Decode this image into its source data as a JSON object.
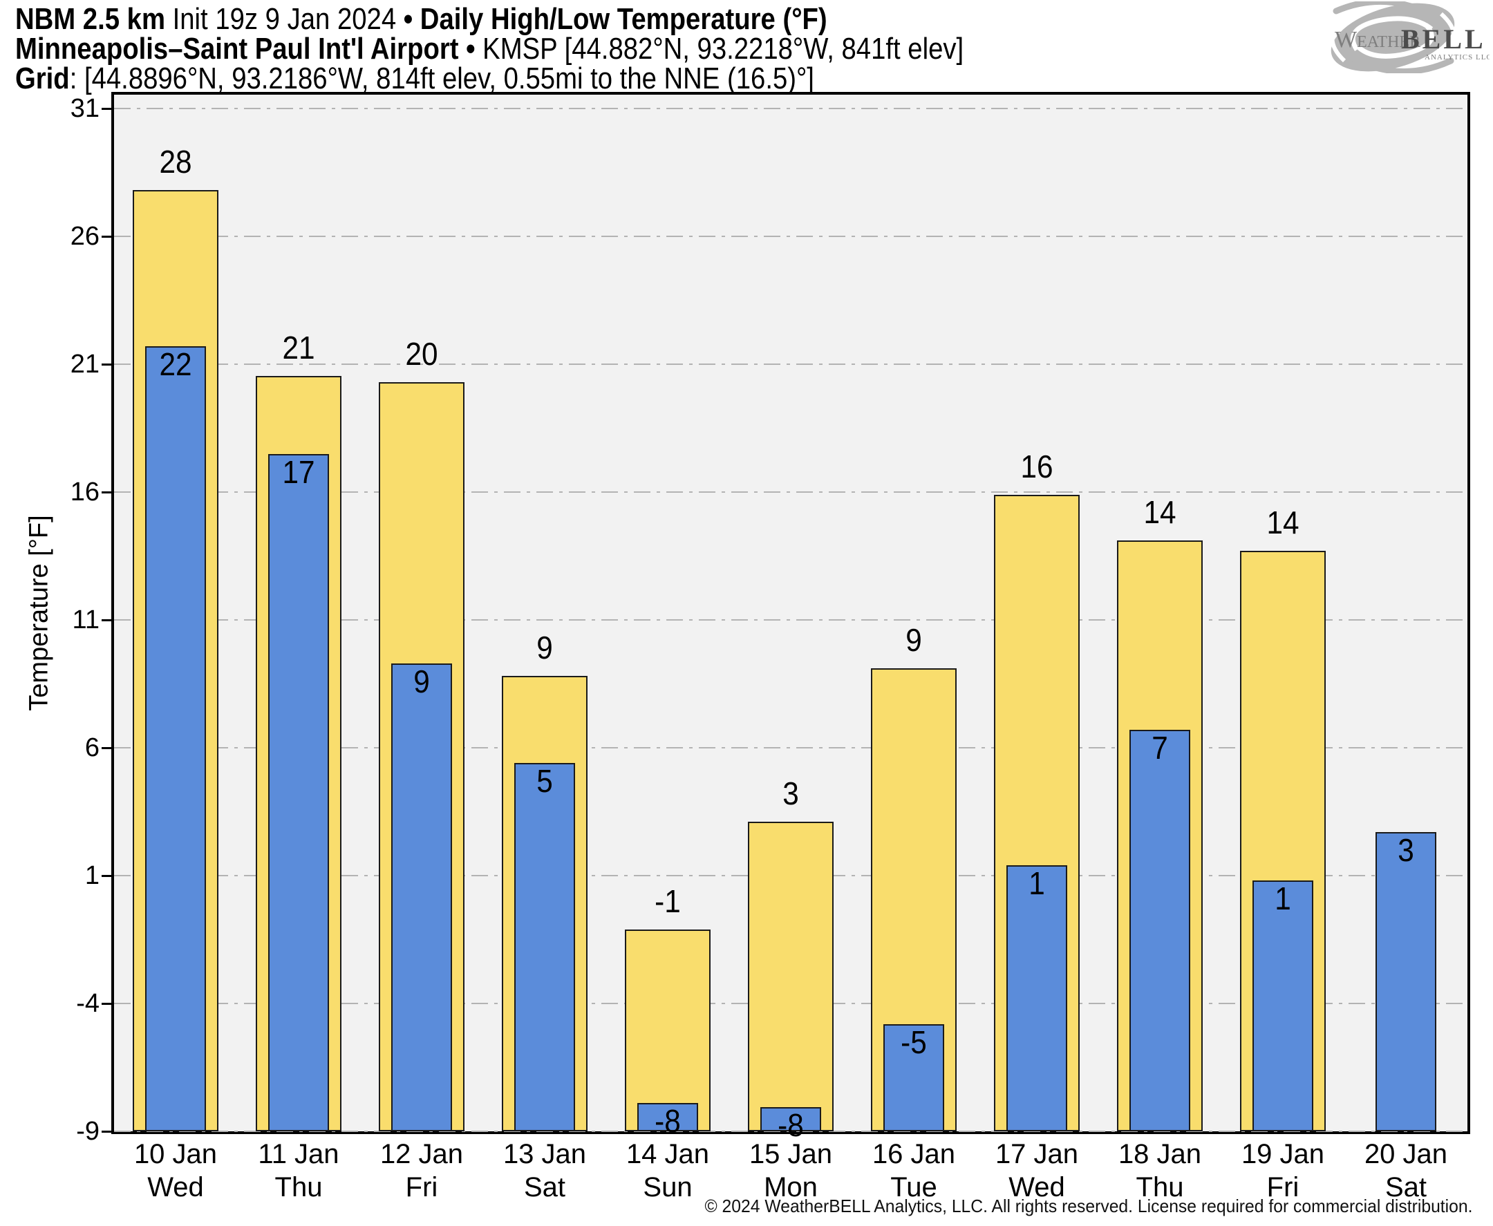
{
  "header": {
    "model": "NBM 2.5 km",
    "init": " Init 19z 9 Jan 2024 ",
    "bullet1": "• ",
    "product": "Daily High/Low Temperature (°F)",
    "station": "Minneapolis–Saint Paul Int'l Airport",
    "bullet2": " • ",
    "station_meta": "KMSP [44.882°N, 93.2218°W, 841ft elev]",
    "grid_label": "Grid",
    "grid_meta": ": [44.8896°N, 93.2186°W, 814ft elev, 0.55mi to the NNE (16.5)°]"
  },
  "logo": {
    "weather": "Weather",
    "bell": "BELL",
    "sub": "Analytics LLC"
  },
  "footer": {
    "copyright": "© 2024 WeatherBELL Analytics, LLC. All rights reserved. License required for commercial distribution."
  },
  "chart_data": {
    "type": "bar",
    "title": "Daily High/Low Temperature (°F)",
    "xlabel": "",
    "ylabel": "Temperature [°F]",
    "yticks": [
      31,
      26,
      21,
      16,
      11,
      6,
      1,
      -4,
      -9
    ],
    "ylim": [
      -9,
      31.5
    ],
    "grid": "horizontal dash-dot gridlines on",
    "legend_position": "none",
    "plot_bg": "#f2f2f2",
    "grid_color": "#b3b3b3",
    "categories": [
      "10 Jan",
      "11 Jan",
      "12 Jan",
      "13 Jan",
      "14 Jan",
      "15 Jan",
      "16 Jan",
      "17 Jan",
      "18 Jan",
      "19 Jan",
      "20 Jan"
    ],
    "dows": [
      "Wed",
      "Thu",
      "Fri",
      "Sat",
      "Sun",
      "Mon",
      "Tue",
      "Wed",
      "Thu",
      "Fri",
      "Sat"
    ],
    "series": [
      {
        "name": "Daily High",
        "color": "#f9dd6d",
        "values": [
          28,
          21,
          20,
          9,
          -1,
          3,
          9,
          16,
          14,
          14,
          null
        ],
        "bar_tops": [
          27.8,
          20.55,
          20.3,
          8.8,
          -1.1,
          3.1,
          9.1,
          15.9,
          14.1,
          13.7,
          null
        ]
      },
      {
        "name": "Daily Low",
        "color": "#5b8cda",
        "values": [
          22,
          17,
          9,
          5,
          -8,
          -8,
          -5,
          1,
          7,
          1,
          3
        ],
        "bar_tops": [
          21.7,
          17.5,
          9.3,
          5.4,
          -7.9,
          -8.05,
          -4.8,
          1.4,
          6.7,
          0.8,
          2.7
        ]
      }
    ]
  }
}
